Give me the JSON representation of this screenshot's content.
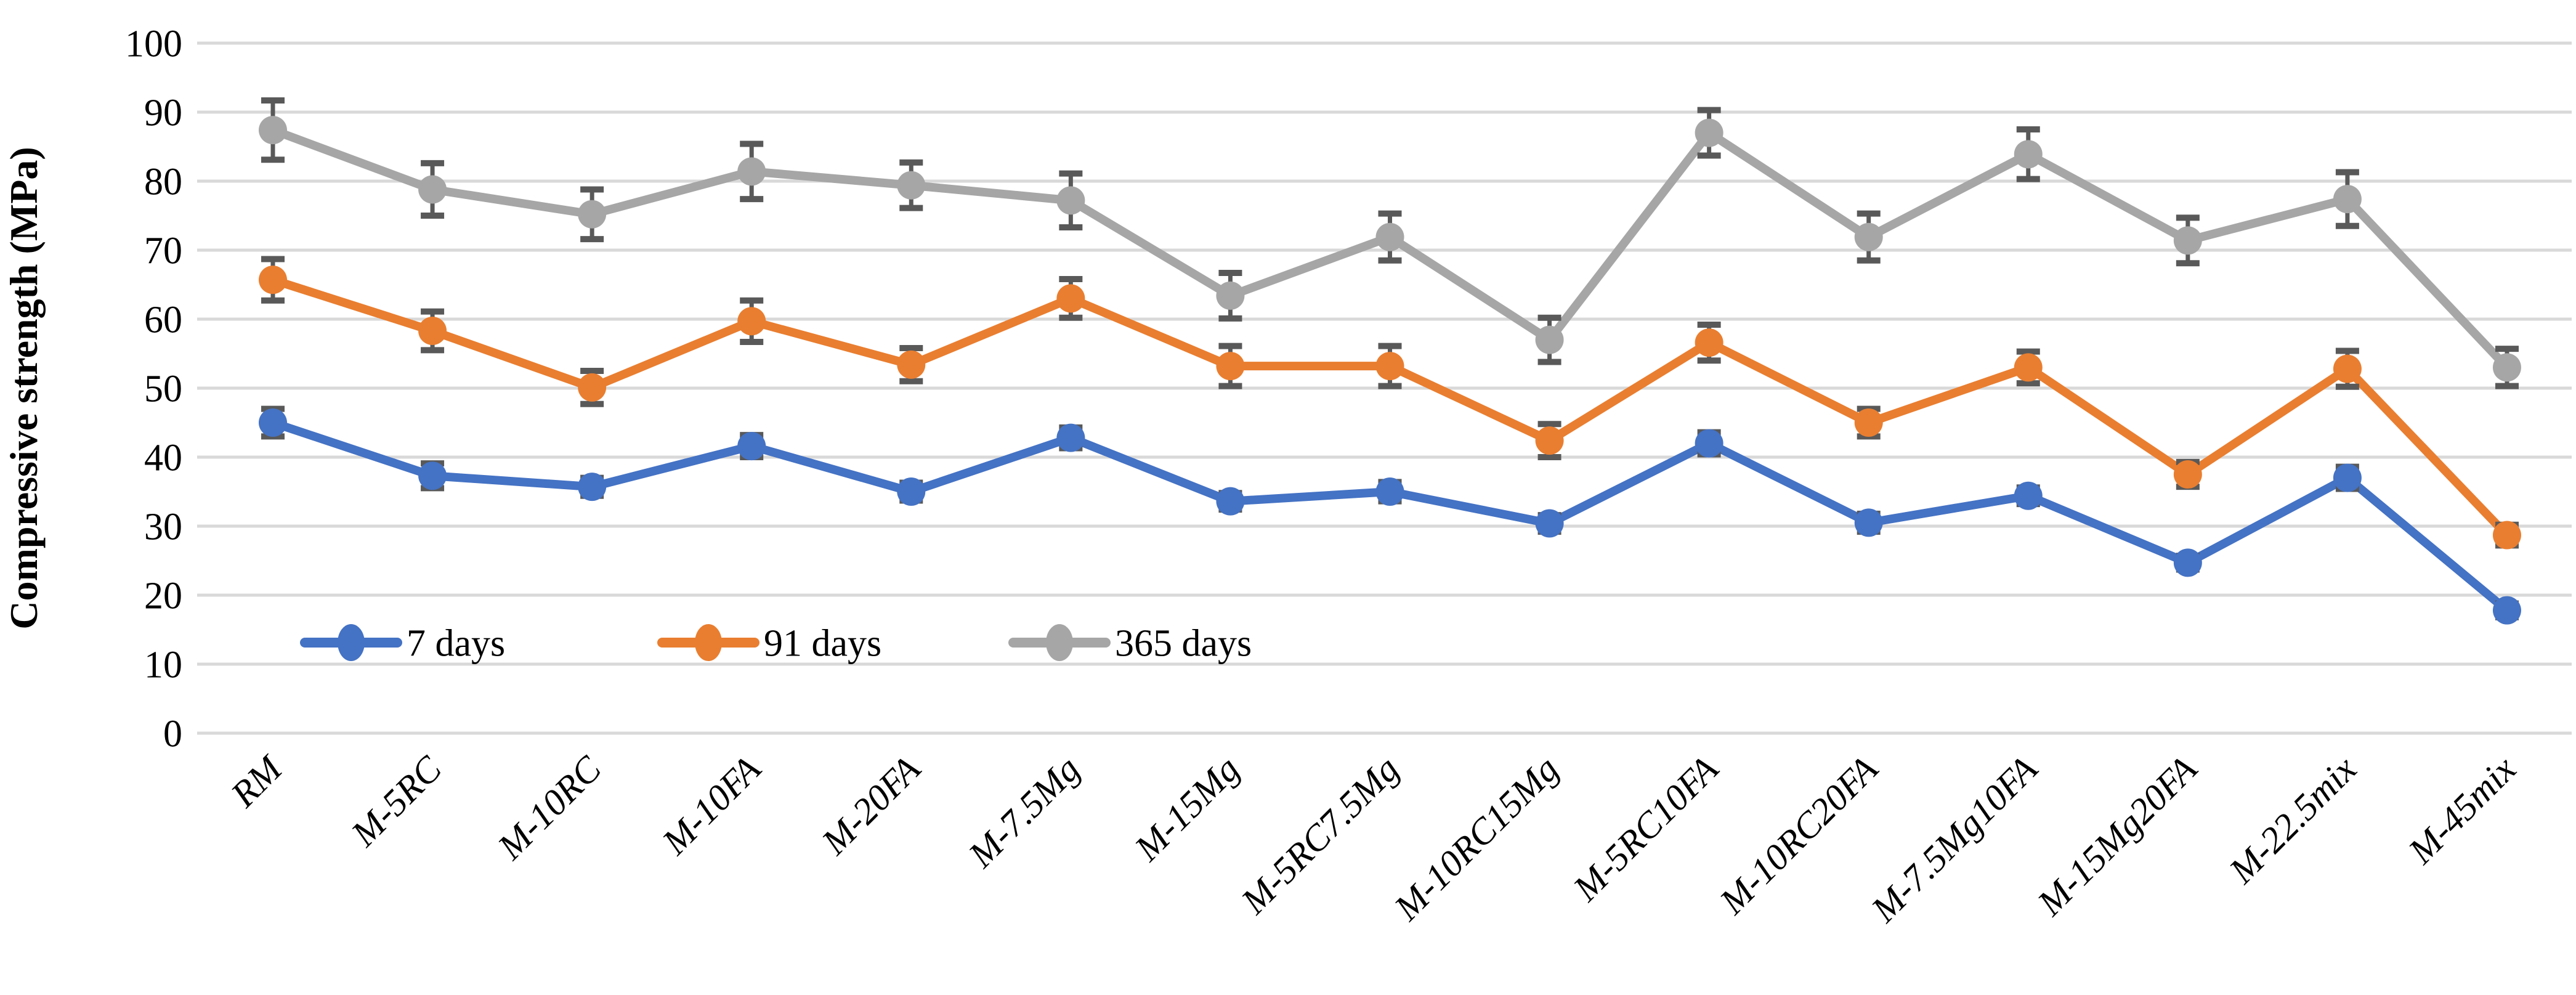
{
  "figure": {
    "background": "#FFFFFF"
  },
  "chart_data": {
    "type": "line",
    "title": "",
    "xlabel": "",
    "ylabel": "Compressive strength (MPa)",
    "ylim": [
      0,
      100
    ],
    "yticks": [
      0,
      10,
      20,
      30,
      40,
      50,
      60,
      70,
      80,
      90,
      100
    ],
    "grid": "horizontal",
    "gridline_color": "#D9D9D9",
    "error_bar_color": "#595959",
    "legend_position": "inside-bottom-left",
    "marker": "circle",
    "categories": [
      "RM",
      "M-5RC",
      "M-10RC",
      "M-10FA",
      "M-20FA",
      "M-7.5Mg",
      "M-15Mg",
      "M-5RC7.5Mg",
      "M-10RC15Mg",
      "M-5RC10FA",
      "M-10RC20FA",
      "M-7.5Mg10FA",
      "M-15Mg20FA",
      "M-22.5mix",
      "M-45mix"
    ],
    "series": [
      {
        "name": "7 days",
        "color": "#4472C4",
        "values": [
          45.0,
          37.3,
          35.7,
          41.6,
          35.0,
          42.8,
          33.6,
          35.0,
          30.4,
          42.0,
          30.5,
          34.4,
          24.7,
          37.0,
          17.8
        ],
        "errors": [
          2.0,
          1.8,
          1.3,
          1.6,
          1.3,
          1.5,
          1.2,
          1.4,
          1.2,
          1.6,
          1.3,
          1.2,
          1.0,
          1.6,
          1.0
        ]
      },
      {
        "name": "91 days",
        "color": "#E97E30",
        "values": [
          65.7,
          58.3,
          50.1,
          59.7,
          53.4,
          63.0,
          53.2,
          53.2,
          42.4,
          56.6,
          45.0,
          53.0,
          37.5,
          52.8,
          28.7
        ],
        "errors": [
          3.0,
          2.8,
          2.4,
          3.0,
          2.4,
          2.8,
          2.9,
          2.9,
          2.4,
          2.6,
          2.0,
          2.3,
          1.8,
          2.6,
          1.5
        ]
      },
      {
        "name": "365 days",
        "color": "#A6A6A6",
        "values": [
          87.4,
          78.8,
          75.2,
          81.4,
          79.4,
          77.2,
          63.4,
          71.9,
          57.0,
          87.0,
          71.9,
          83.9,
          71.4,
          77.4,
          53.0
        ],
        "errors": [
          4.3,
          3.8,
          3.6,
          4.0,
          3.3,
          3.9,
          3.3,
          3.4,
          3.2,
          3.3,
          3.4,
          3.6,
          3.3,
          3.9,
          2.7
        ]
      }
    ]
  }
}
